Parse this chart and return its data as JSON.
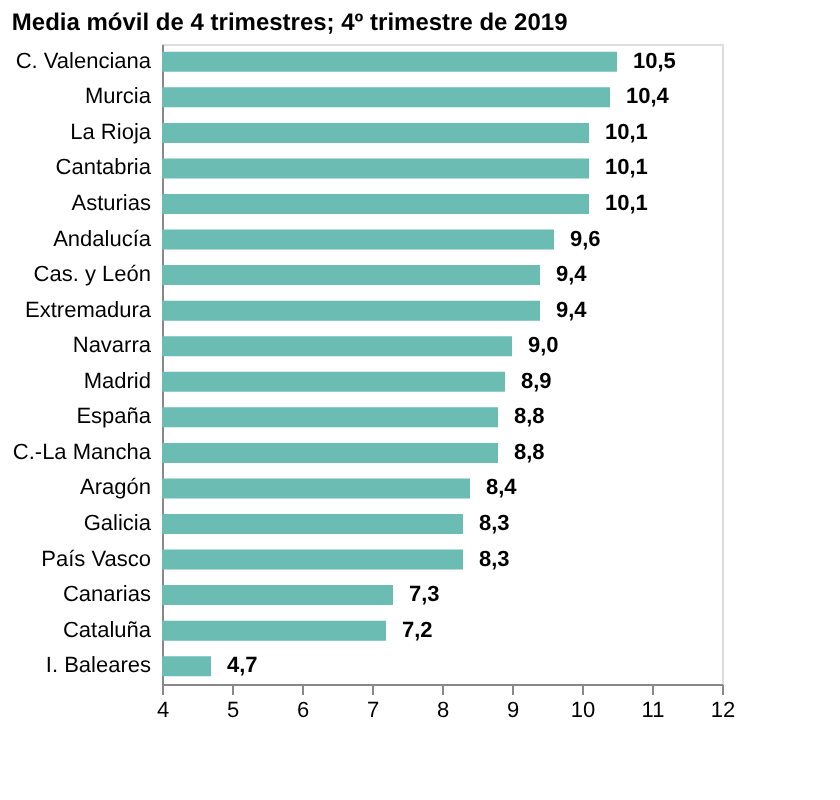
{
  "chart_data": {
    "type": "bar",
    "orientation": "horizontal",
    "title": "Media móvil de 4 trimestres; 4º trimestre de 2019",
    "categories": [
      "C. Valenciana",
      "Murcia",
      "La Rioja",
      "Cantabria",
      "Asturias",
      "Andalucía",
      "Cas. y León",
      "Extremadura",
      "Navarra",
      "Madrid",
      "España",
      "C.-La Mancha",
      "Aragón",
      "Galicia",
      "País Vasco",
      "Canarias",
      "Cataluña",
      "I. Baleares"
    ],
    "values": [
      10.5,
      10.4,
      10.1,
      10.1,
      10.1,
      9.6,
      9.4,
      9.4,
      9.0,
      8.9,
      8.8,
      8.8,
      8.4,
      8.3,
      8.3,
      7.3,
      7.2,
      4.7
    ],
    "value_labels": [
      "10,5",
      "10,4",
      "10,1",
      "10,1",
      "10,1",
      "9,6",
      "9,4",
      "9,4",
      "9,0",
      "8,9",
      "8,8",
      "8,8",
      "8,4",
      "8,3",
      "8,3",
      "7,3",
      "7,2",
      "4,7"
    ],
    "color": "#6bbcb3",
    "xlim": [
      4,
      12
    ],
    "xticks": [
      4,
      5,
      6,
      7,
      8,
      9,
      10,
      11,
      12
    ],
    "grid": false
  }
}
